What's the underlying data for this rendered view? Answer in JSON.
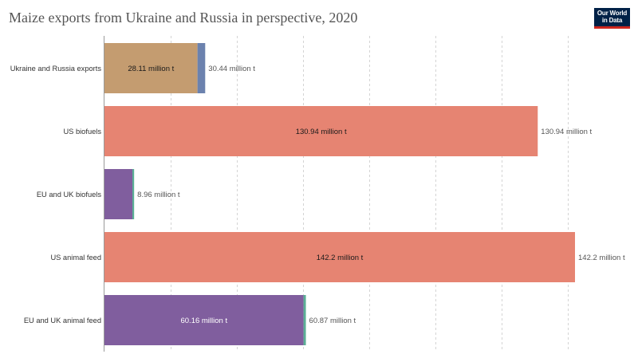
{
  "chart_data": {
    "type": "bar",
    "orientation": "horizontal",
    "stacked": true,
    "title": "Maize exports from Ukraine and Russia in perspective, 2020",
    "xlim": [
      0,
      142.2
    ],
    "grid": true,
    "gridlines": [
      20,
      40,
      60,
      80,
      100,
      120,
      140
    ],
    "bars": [
      {
        "category": "Ukraine and Russia exports",
        "segments": [
          28.11,
          2.33
        ],
        "colors": [
          "#c49c70",
          "#6c82ae"
        ],
        "inner_label": "28.11 million t",
        "inner_label_color": "#1a1a1a",
        "total_label": "30.44 million t"
      },
      {
        "category": "US biofuels",
        "segments": [
          130.94
        ],
        "colors": [
          "#e68472"
        ],
        "inner_label": "130.94 million t",
        "inner_label_color": "#1a1a1a",
        "total_label": "130.94 million t"
      },
      {
        "category": "EU and UK biofuels",
        "segments": [
          8.44,
          0.52
        ],
        "colors": [
          "#805e9e",
          "#5aae95"
        ],
        "total_label": "8.96 million t"
      },
      {
        "category": "US animal feed",
        "segments": [
          142.2
        ],
        "colors": [
          "#e68472"
        ],
        "inner_label": "142.2 million t",
        "inner_label_color": "#1a1a1a",
        "total_label": "142.2 million t"
      },
      {
        "category": "EU and UK animal feed",
        "segments": [
          60.16,
          0.71
        ],
        "colors": [
          "#805e9e",
          "#5aae95"
        ],
        "inner_label": "60.16 million t",
        "inner_label_color": "#ffffff",
        "total_label": "60.87 million t"
      }
    ]
  },
  "logo": {
    "line1": "Our World",
    "line2": "in Data",
    "background": "#002147",
    "accent": "#ce261e"
  }
}
